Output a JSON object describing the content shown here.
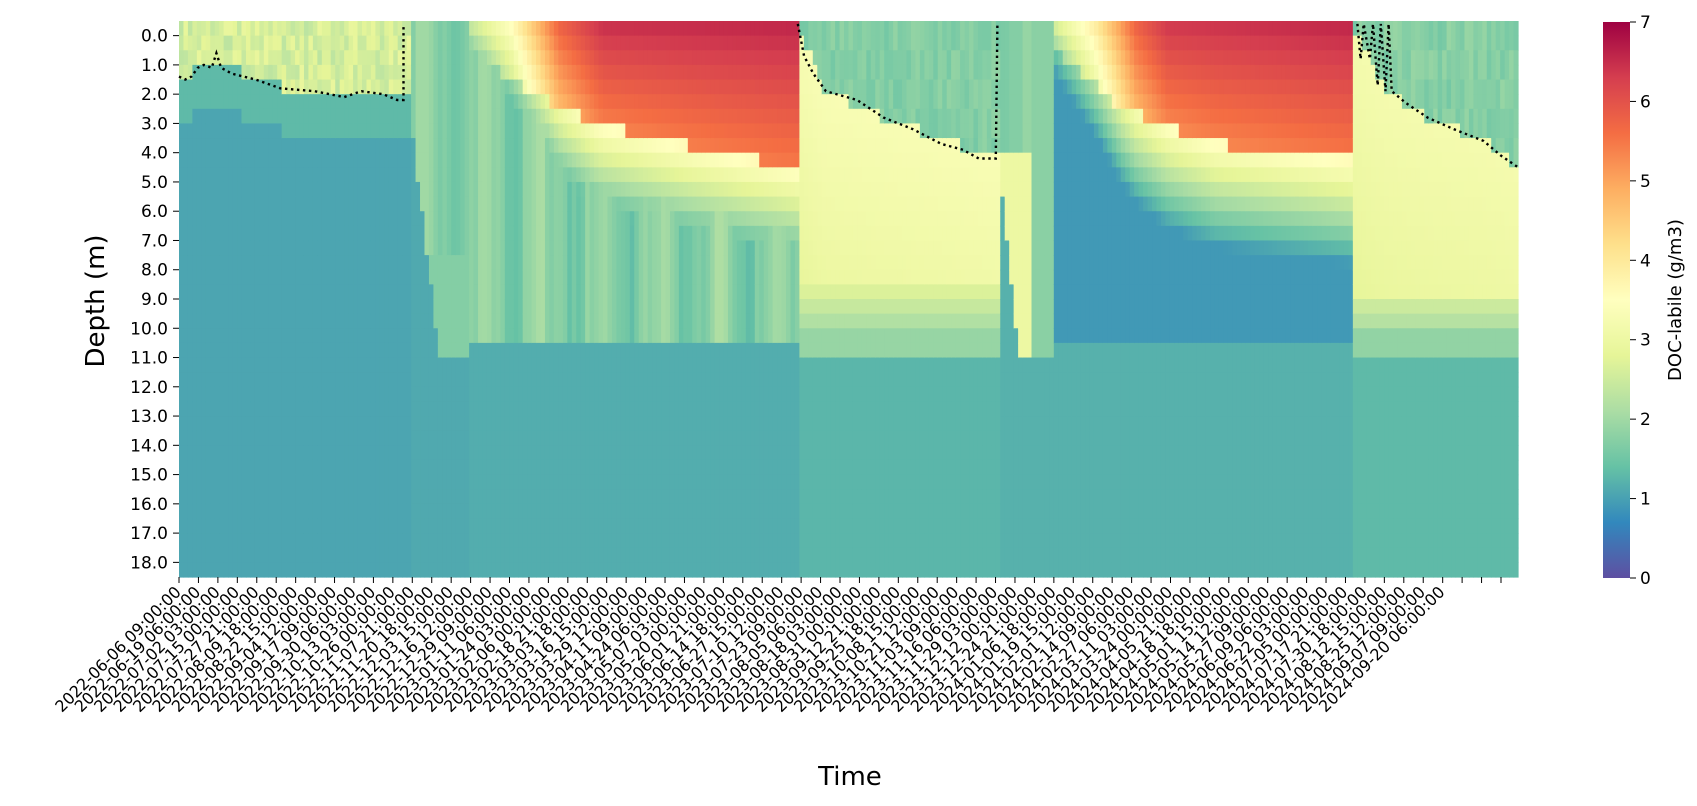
{
  "chart_data": {
    "type": "heatmap",
    "title": "",
    "xlabel": "Time",
    "ylabel": "Depth (m)",
    "colorbar_label": "DOC-labile  (g/m3)",
    "colormap": "Spectral_r",
    "colormap_stops": [
      "#5e4fa2",
      "#3288bd",
      "#66c2a5",
      "#abdda4",
      "#e6f598",
      "#ffffbf",
      "#fee08b",
      "#fdae61",
      "#f46d43",
      "#d53e4f",
      "#9e0142"
    ],
    "clim": [
      0,
      7
    ],
    "colorbar_ticks": [
      "0",
      "1",
      "2",
      "3",
      "4",
      "5",
      "6",
      "7"
    ],
    "y_tick_labels": [
      "0.0",
      "1.0",
      "2.0",
      "3.0",
      "4.0",
      "5.0",
      "6.0",
      "7.0",
      "8.0",
      "9.0",
      "10.0",
      "11.0",
      "12.0",
      "13.0",
      "14.0",
      "15.0",
      "16.0",
      "17.0",
      "18.0"
    ],
    "x_tick_labels": [
      "2022-06-06 09:00:00",
      "2022-06-19 06:00:00",
      "2022-07-02 03:00:00",
      "2022-07-15 00:00:00",
      "2022-07-27 21:00:00",
      "2022-08-09 18:00:00",
      "2022-08-22 15:00:00",
      "2022-09-04 12:00:00",
      "2022-09-17 09:00:00",
      "2022-09-30 06:00:00",
      "2022-10-13 03:00:00",
      "2022-10-26 00:00:00",
      "2022-11-07 21:00:00",
      "2022-11-20 18:00:00",
      "2022-12-03 15:00:00",
      "2022-12-16 12:00:00",
      "2022-12-29 09:00:00",
      "2023-01-11 06:00:00",
      "2023-01-24 03:00:00",
      "2023-02-06 00:00:00",
      "2023-02-18 21:00:00",
      "2023-03-03 18:00:00",
      "2023-03-16 15:00:00",
      "2023-03-29 12:00:00",
      "2023-04-11 09:00:00",
      "2023-04-24 06:00:00",
      "2023-05-07 03:00:00",
      "2023-05-20 00:00:00",
      "2023-06-01 21:00:00",
      "2023-06-14 18:00:00",
      "2023-06-27 15:00:00",
      "2023-07-10 12:00:00",
      "2023-07-23 09:00:00",
      "2023-08-05 06:00:00",
      "2023-08-18 03:00:00",
      "2023-08-31 00:00:00",
      "2023-09-12 21:00:00",
      "2023-09-25 18:00:00",
      "2023-10-08 15:00:00",
      "2023-10-21 12:00:00",
      "2023-11-03 09:00:00",
      "2023-11-16 06:00:00",
      "2023-11-29 03:00:00",
      "2023-12-12 00:00:00",
      "2023-12-24 21:00:00",
      "2024-01-06 18:00:00",
      "2024-01-19 15:00:00",
      "2024-02-01 12:00:00",
      "2024-02-14 09:00:00",
      "2024-02-27 06:00:00",
      "2024-03-11 03:00:00",
      "2024-03-24 00:00:00",
      "2024-04-05 21:00:00",
      "2024-04-18 18:00:00",
      "2024-05-01 15:00:00",
      "2024-05-14 12:00:00",
      "2024-05-27 09:00:00",
      "2024-06-09 06:00:00",
      "2024-06-22 03:00:00",
      "2024-07-05 00:00:00",
      "2024-07-17 21:00:00",
      "2024-07-30 18:00:00",
      "2024-08-12 15:00:00",
      "2024-08-25 12:00:00",
      "2024-09-07 09:00:00",
      "2024-09-20 06:00:00"
    ],
    "x_ticks_unlabeled_trailing": 3,
    "x_range": [
      "2022-06-06",
      "2024-10-12"
    ],
    "depth_range": [
      0,
      19
    ],
    "mixed_layer_depth_line": {
      "style": "black dotted",
      "points": [
        [
          "2022-06-06",
          1.9
        ],
        [
          "2022-06-10",
          2.0
        ],
        [
          "2022-06-14",
          1.9
        ],
        [
          "2022-06-18",
          1.6
        ],
        [
          "2022-06-22",
          1.5
        ],
        [
          "2022-06-27",
          1.6
        ],
        [
          "2022-06-30",
          1.1
        ],
        [
          "2022-07-03",
          1.6
        ],
        [
          "2022-07-10",
          1.8
        ],
        [
          "2022-07-25",
          2.0
        ],
        [
          "2022-08-10",
          2.3
        ],
        [
          "2022-09-01",
          2.4
        ],
        [
          "2022-09-20",
          2.6
        ],
        [
          "2022-10-01",
          2.4
        ],
        [
          "2022-10-15",
          2.5
        ],
        [
          "2022-10-24",
          2.7
        ],
        [
          "2022-10-28",
          2.7
        ],
        [
          "2022-10-28",
          0.2
        ],
        null,
        [
          "2023-07-08",
          0.1
        ],
        [
          "2023-07-12",
          1.2
        ],
        [
          "2023-07-18",
          1.8
        ],
        [
          "2023-07-26",
          2.4
        ],
        [
          "2023-08-15",
          2.7
        ],
        [
          "2023-09-01",
          3.3
        ],
        [
          "2023-09-20",
          3.7
        ],
        [
          "2023-10-08",
          4.2
        ],
        [
          "2023-10-22",
          4.4
        ],
        [
          "2023-11-01",
          4.7
        ],
        [
          "2023-11-12",
          4.7
        ],
        [
          "2023-11-13",
          0.1
        ],
        null,
        [
          "2024-07-01",
          0.1
        ],
        [
          "2024-07-03",
          1.3
        ],
        [
          "2024-07-05",
          0.1
        ],
        [
          "2024-07-09",
          1.3
        ],
        [
          "2024-07-11",
          0.1
        ],
        [
          "2024-07-14",
          2.2
        ],
        [
          "2024-07-16",
          0.1
        ],
        [
          "2024-07-19",
          2.4
        ],
        [
          "2024-07-21",
          0.1
        ],
        [
          "2024-07-23",
          2.4
        ],
        [
          "2024-08-01",
          2.8
        ],
        [
          "2024-08-15",
          3.3
        ],
        [
          "2024-09-01",
          3.7
        ],
        [
          "2024-09-20",
          4.1
        ],
        [
          "2024-10-01",
          4.6
        ],
        [
          "2024-10-12",
          5.0
        ]
      ]
    }
  }
}
